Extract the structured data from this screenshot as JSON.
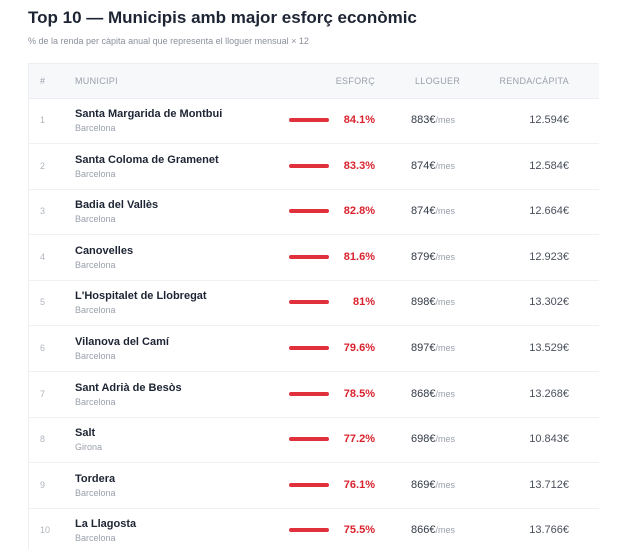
{
  "header": {
    "title": "Top 10 — Municipis amb major esforç econòmic",
    "subtitle": "% de la renda per càpita anual que representa el lloguer mensual × 12"
  },
  "table": {
    "columns": [
      "#",
      "MUNICIPI",
      "ESFORÇ",
      "LLOGUER",
      "RENDA/CÀPITA"
    ],
    "rent_unit": "/mes",
    "rows": [
      {
        "rank": 1,
        "name": "Santa Margarida de Montbui",
        "province": "Barcelona",
        "effort": "84.1%",
        "rent": "883€",
        "income": "12.594€"
      },
      {
        "rank": 2,
        "name": "Santa Coloma de Gramenet",
        "province": "Barcelona",
        "effort": "83.3%",
        "rent": "874€",
        "income": "12.584€"
      },
      {
        "rank": 3,
        "name": "Badia del Vallès",
        "province": "Barcelona",
        "effort": "82.8%",
        "rent": "874€",
        "income": "12.664€"
      },
      {
        "rank": 4,
        "name": "Canovelles",
        "province": "Barcelona",
        "effort": "81.6%",
        "rent": "879€",
        "income": "12.923€"
      },
      {
        "rank": 5,
        "name": "L'Hospitalet de Llobregat",
        "province": "Barcelona",
        "effort": "81%",
        "rent": "898€",
        "income": "13.302€"
      },
      {
        "rank": 6,
        "name": "Vilanova del Camí",
        "province": "Barcelona",
        "effort": "79.6%",
        "rent": "897€",
        "income": "13.529€"
      },
      {
        "rank": 7,
        "name": "Sant Adrià de Besòs",
        "province": "Barcelona",
        "effort": "78.5%",
        "rent": "868€",
        "income": "13.268€"
      },
      {
        "rank": 8,
        "name": "Salt",
        "province": "Girona",
        "effort": "77.2%",
        "rent": "698€",
        "income": "10.843€"
      },
      {
        "rank": 9,
        "name": "Tordera",
        "province": "Barcelona",
        "effort": "76.1%",
        "rent": "869€",
        "income": "13.712€"
      },
      {
        "rank": 10,
        "name": "La Llagosta",
        "province": "Barcelona",
        "effort": "75.5%",
        "rent": "866€",
        "income": "13.766€"
      }
    ]
  }
}
